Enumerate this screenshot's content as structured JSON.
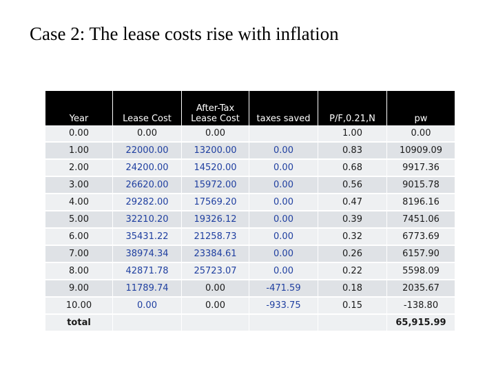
{
  "title": "Case 2: The lease costs rise with inflation",
  "table": {
    "headers": [
      "Year",
      "Lease Cost",
      "After-Tax Lease Cost",
      "taxes saved",
      "P/F,0.21,N",
      "pw"
    ],
    "rows": [
      [
        "0.00",
        "0.00",
        "0.00",
        "",
        "1.00",
        "0.00"
      ],
      [
        "1.00",
        "22000.00",
        "13200.00",
        "0.00",
        "0.83",
        "10909.09"
      ],
      [
        "2.00",
        "24200.00",
        "14520.00",
        "0.00",
        "0.68",
        "9917.36"
      ],
      [
        "3.00",
        "26620.00",
        "15972.00",
        "0.00",
        "0.56",
        "9015.78"
      ],
      [
        "4.00",
        "29282.00",
        "17569.20",
        "0.00",
        "0.47",
        "8196.16"
      ],
      [
        "5.00",
        "32210.20",
        "19326.12",
        "0.00",
        "0.39",
        "7451.06"
      ],
      [
        "6.00",
        "35431.22",
        "21258.73",
        "0.00",
        "0.32",
        "6773.69"
      ],
      [
        "7.00",
        "38974.34",
        "23384.61",
        "0.00",
        "0.26",
        "6157.90"
      ],
      [
        "8.00",
        "42871.78",
        "25723.07",
        "0.00",
        "0.22",
        "5598.09"
      ],
      [
        "9.00",
        "11789.74",
        "0.00",
        "-471.59",
        "0.18",
        "2035.67"
      ],
      [
        "10.00",
        "0.00",
        "0.00",
        "-933.75",
        "0.15",
        "-138.80"
      ]
    ],
    "total_label": "total",
    "total_value": "65,915.99"
  },
  "colors": {
    "header_bg": "#000000",
    "header_text": "#ffffff",
    "value_blue": "#1f3fa0",
    "row_light": "#eef0f2",
    "row_dark": "#dfe2e6"
  }
}
